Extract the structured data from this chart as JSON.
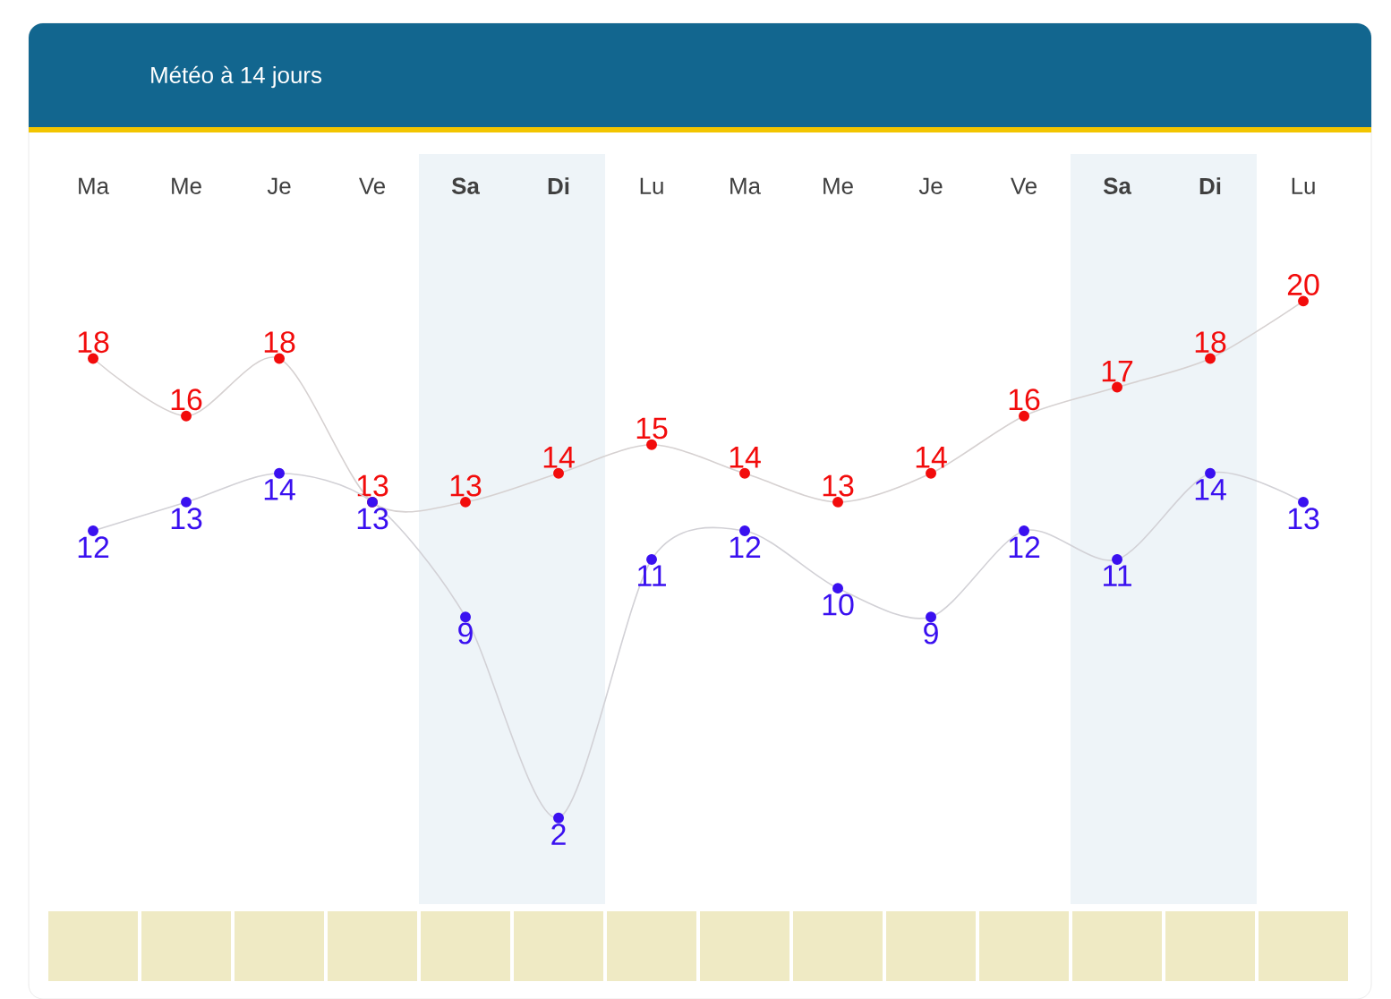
{
  "chart_data": {
    "type": "line",
    "title": "Météo à 14 jours",
    "categories": [
      "Ma",
      "Me",
      "Je",
      "Ve",
      "Sa",
      "Di",
      "Lu",
      "Ma",
      "Me",
      "Je",
      "Ve",
      "Sa",
      "Di",
      "Lu"
    ],
    "data_labels": true,
    "marker": "circle",
    "series": [
      {
        "color": "#f20c0c",
        "values": [
          18,
          16,
          18,
          13,
          13,
          14,
          15,
          14,
          13,
          14,
          16,
          17,
          18,
          20
        ]
      },
      {
        "color": "#3a10f0",
        "values": [
          12,
          13,
          14,
          13,
          9,
          2,
          11,
          12,
          10,
          9,
          12,
          11,
          14,
          13
        ]
      }
    ]
  }
}
